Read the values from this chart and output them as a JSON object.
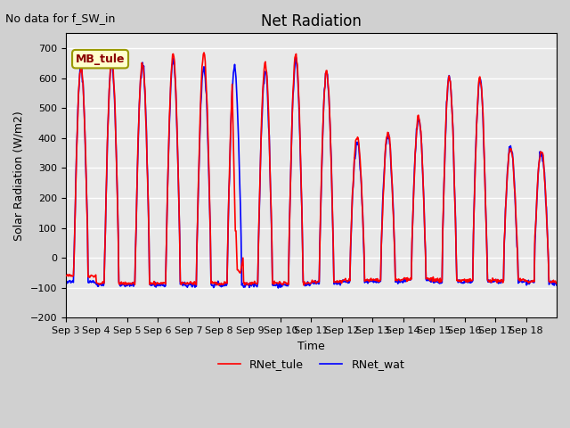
{
  "title": "Net Radiation",
  "xlabel": "Time",
  "ylabel": "Solar Radiation (W/m2)",
  "note": "No data for f_SW_in",
  "legend_label1": "RNet_tule",
  "legend_label2": "RNet_wat",
  "color1": "#ff0000",
  "color2": "#0000ff",
  "ylim": [
    -200,
    750
  ],
  "yticks": [
    -200,
    -100,
    0,
    100,
    200,
    300,
    400,
    500,
    600,
    700
  ],
  "xtick_labels": [
    "Sep 3",
    "Sep 4",
    "Sep 5",
    "Sep 6",
    "Sep 7",
    "Sep 8",
    "Sep 9",
    "Sep 10",
    "Sep 11",
    "Sep 12",
    "Sep 13",
    "Sep 14",
    "Sep 15",
    "Sep 16",
    "Sep 17",
    "Sep 18"
  ],
  "bg_color": "#e8e8e8",
  "plot_bg": "#f0f0f0",
  "legend_box_color": "#ffffcc",
  "legend_box_text": "MB_tule",
  "lw": 1.2
}
